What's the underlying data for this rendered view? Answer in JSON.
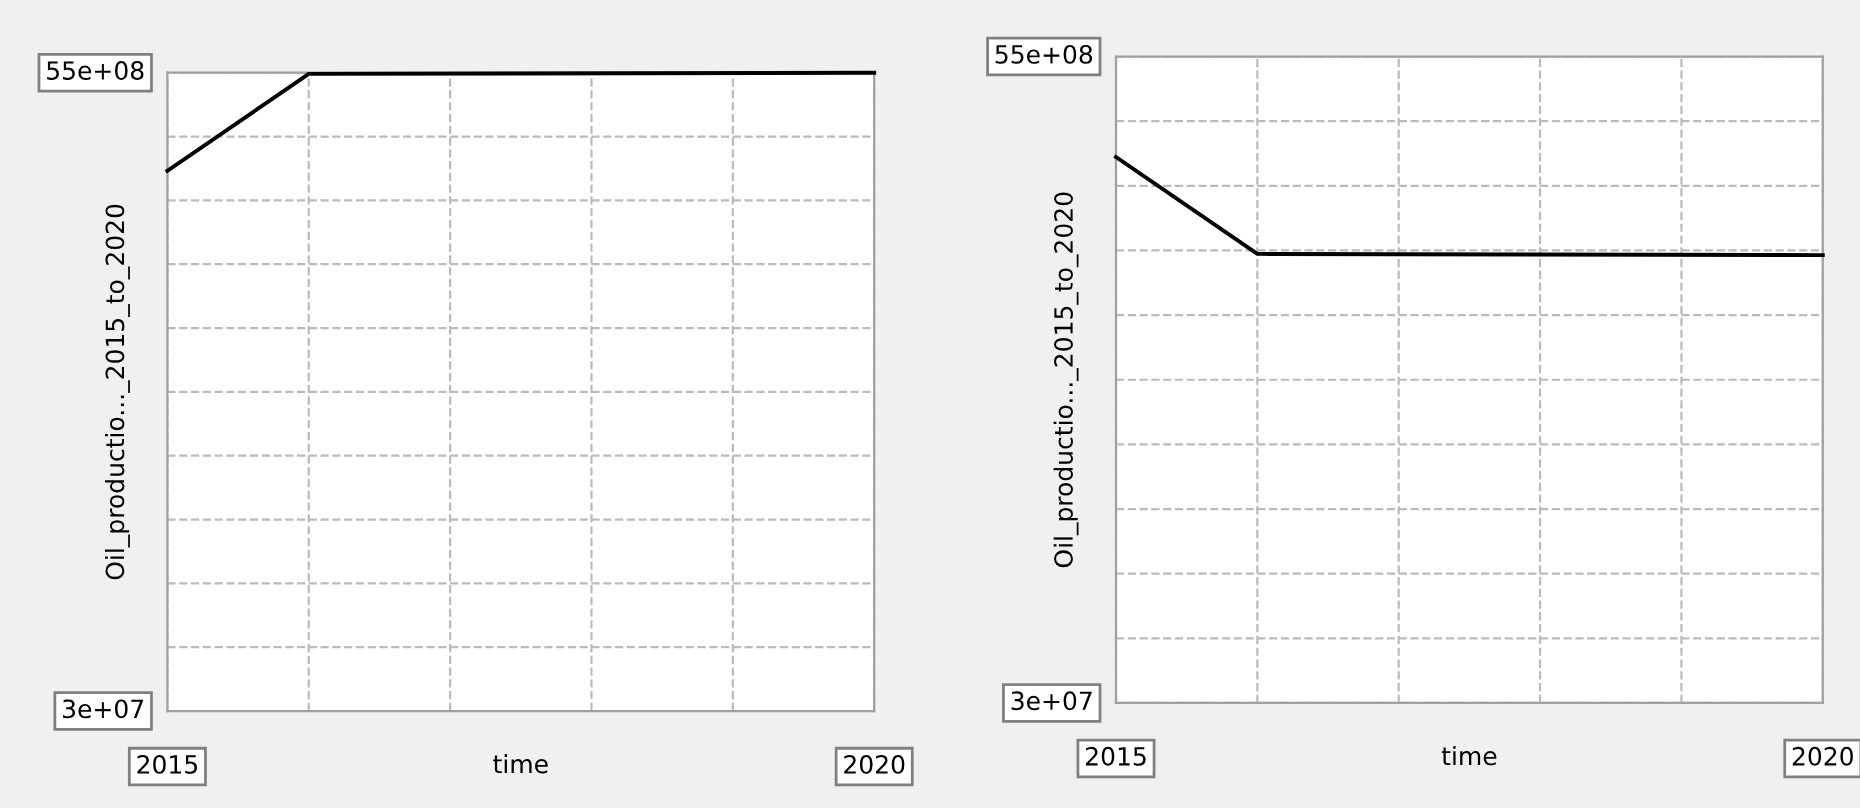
{
  "chart_data": [
    {
      "type": "line",
      "xlabel": "time",
      "ylabel": "Oil_productio..._2015_to_2020",
      "x": [
        2015,
        2016,
        2020
      ],
      "series": [
        {
          "color": "#000000",
          "values": [
            4660000000.0,
            5490000000.0,
            5500000000.0
          ]
        }
      ],
      "xlim": [
        2015,
        2020
      ],
      "ylim": [
        30000000.0,
        5500000000.0
      ],
      "xticks": [
        {
          "value": 2015,
          "label": "2015"
        },
        {
          "value": 2016,
          "label": null
        },
        {
          "value": 2017,
          "label": null
        },
        {
          "value": 2018,
          "label": null
        },
        {
          "value": 2019,
          "label": null
        },
        {
          "value": 2020,
          "label": "2020"
        }
      ],
      "yticks": [
        {
          "value": 30000000.0,
          "label": "3e+07"
        },
        {
          "value": 577000000.0,
          "label": null
        },
        {
          "value": 1124000000.0,
          "label": null
        },
        {
          "value": 1671000000.0,
          "label": null
        },
        {
          "value": 2218000000.0,
          "label": null
        },
        {
          "value": 2765000000.0,
          "label": null
        },
        {
          "value": 3312000000.0,
          "label": null
        },
        {
          "value": 3859000000.0,
          "label": null
        },
        {
          "value": 4406000000.0,
          "label": null
        },
        {
          "value": 4953000000.0,
          "label": null
        },
        {
          "value": 5500000000.0,
          "label": "55e+08"
        }
      ],
      "grid": true
    },
    {
      "type": "line",
      "xlabel": "time",
      "ylabel": "Oil_productio..._2015_to_2020",
      "x": [
        2015,
        2016,
        2020
      ],
      "series": [
        {
          "color": "#000000",
          "values": [
            4650000000.0,
            3830000000.0,
            3820000000.0
          ]
        }
      ],
      "xlim": [
        2015,
        2020
      ],
      "ylim": [
        30000000.0,
        5500000000.0
      ],
      "xticks": [
        {
          "value": 2015,
          "label": "2015"
        },
        {
          "value": 2016,
          "label": null
        },
        {
          "value": 2017,
          "label": null
        },
        {
          "value": 2018,
          "label": null
        },
        {
          "value": 2019,
          "label": null
        },
        {
          "value": 2020,
          "label": "2020"
        }
      ],
      "yticks": [
        {
          "value": 30000000.0,
          "label": "3e+07"
        },
        {
          "value": 577000000.0,
          "label": null
        },
        {
          "value": 1124000000.0,
          "label": null
        },
        {
          "value": 1671000000.0,
          "label": null
        },
        {
          "value": 2218000000.0,
          "label": null
        },
        {
          "value": 2765000000.0,
          "label": null
        },
        {
          "value": 3312000000.0,
          "label": null
        },
        {
          "value": 3859000000.0,
          "label": null
        },
        {
          "value": 4406000000.0,
          "label": null
        },
        {
          "value": 4953000000.0,
          "label": null
        },
        {
          "value": 5500000000.0,
          "label": "55e+08"
        }
      ],
      "grid": true
    }
  ]
}
